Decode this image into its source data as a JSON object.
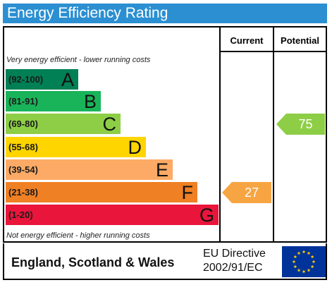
{
  "title": "Energy Efficiency Rating",
  "columns": {
    "current": "Current",
    "potential": "Potential"
  },
  "notes": {
    "top": "Very energy efficient - lower running costs",
    "bottom": "Not energy efficient - higher running costs"
  },
  "bands": [
    {
      "range": "(92-100)",
      "letter": "A",
      "color": "#008054"
    },
    {
      "range": "(81-91)",
      "letter": "B",
      "color": "#19b459"
    },
    {
      "range": "(69-80)",
      "letter": "C",
      "color": "#8dce46"
    },
    {
      "range": "(55-68)",
      "letter": "D",
      "color": "#ffd500"
    },
    {
      "range": "(39-54)",
      "letter": "E",
      "color": "#fcaa65"
    },
    {
      "range": "(21-38)",
      "letter": "F",
      "color": "#ef8023"
    },
    {
      "range": "(1-20)",
      "letter": "G",
      "color": "#e9153b"
    }
  ],
  "ratings": {
    "current": {
      "value": "27",
      "band": "F",
      "color": "#f7a543"
    },
    "potential": {
      "value": "75",
      "band": "C",
      "color": "#8dce46"
    }
  },
  "footer": {
    "region": "England, Scotland & Wales",
    "directive_line1": "EU Directive",
    "directive_line2": "2002/91/EC"
  },
  "colors": {
    "title_bar": "#2b8fd1",
    "flag_blue": "#003399",
    "flag_star": "#ffcc00"
  }
}
